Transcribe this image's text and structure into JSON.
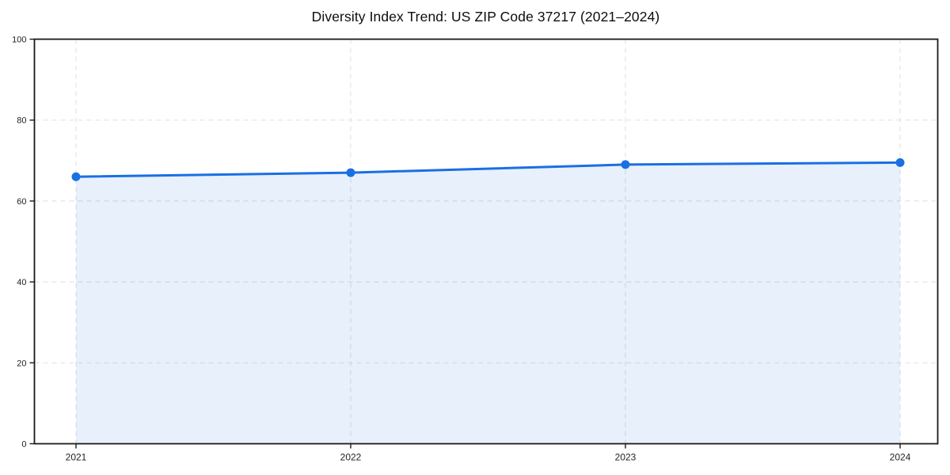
{
  "title": "Diversity Index Trend: US ZIP Code 37217 (2021–2024)",
  "chart_data": {
    "type": "area",
    "title": "Diversity Index Trend: US ZIP Code 37217 (2021–2024)",
    "x": [
      2021,
      2022,
      2023,
      2024
    ],
    "series": [
      {
        "name": "Diversity Index",
        "values": [
          66,
          67,
          69,
          69.5
        ]
      }
    ],
    "xlabel": "",
    "ylabel": "",
    "ylim": [
      0,
      100
    ],
    "yticks": [
      0,
      20,
      40,
      60,
      80,
      100
    ],
    "xticks": [
      "2021",
      "2022",
      "2023",
      "2024"
    ],
    "grid": "dashed-both",
    "legend_position": "none",
    "line_color": "#1a6fe3",
    "fill_color": "rgba(26,111,227,0.10)",
    "grid_color": "#e3e3e3",
    "spine_color": "#1a1a1a",
    "tick_label_color": "#1f1f1f",
    "marker": "circle"
  }
}
